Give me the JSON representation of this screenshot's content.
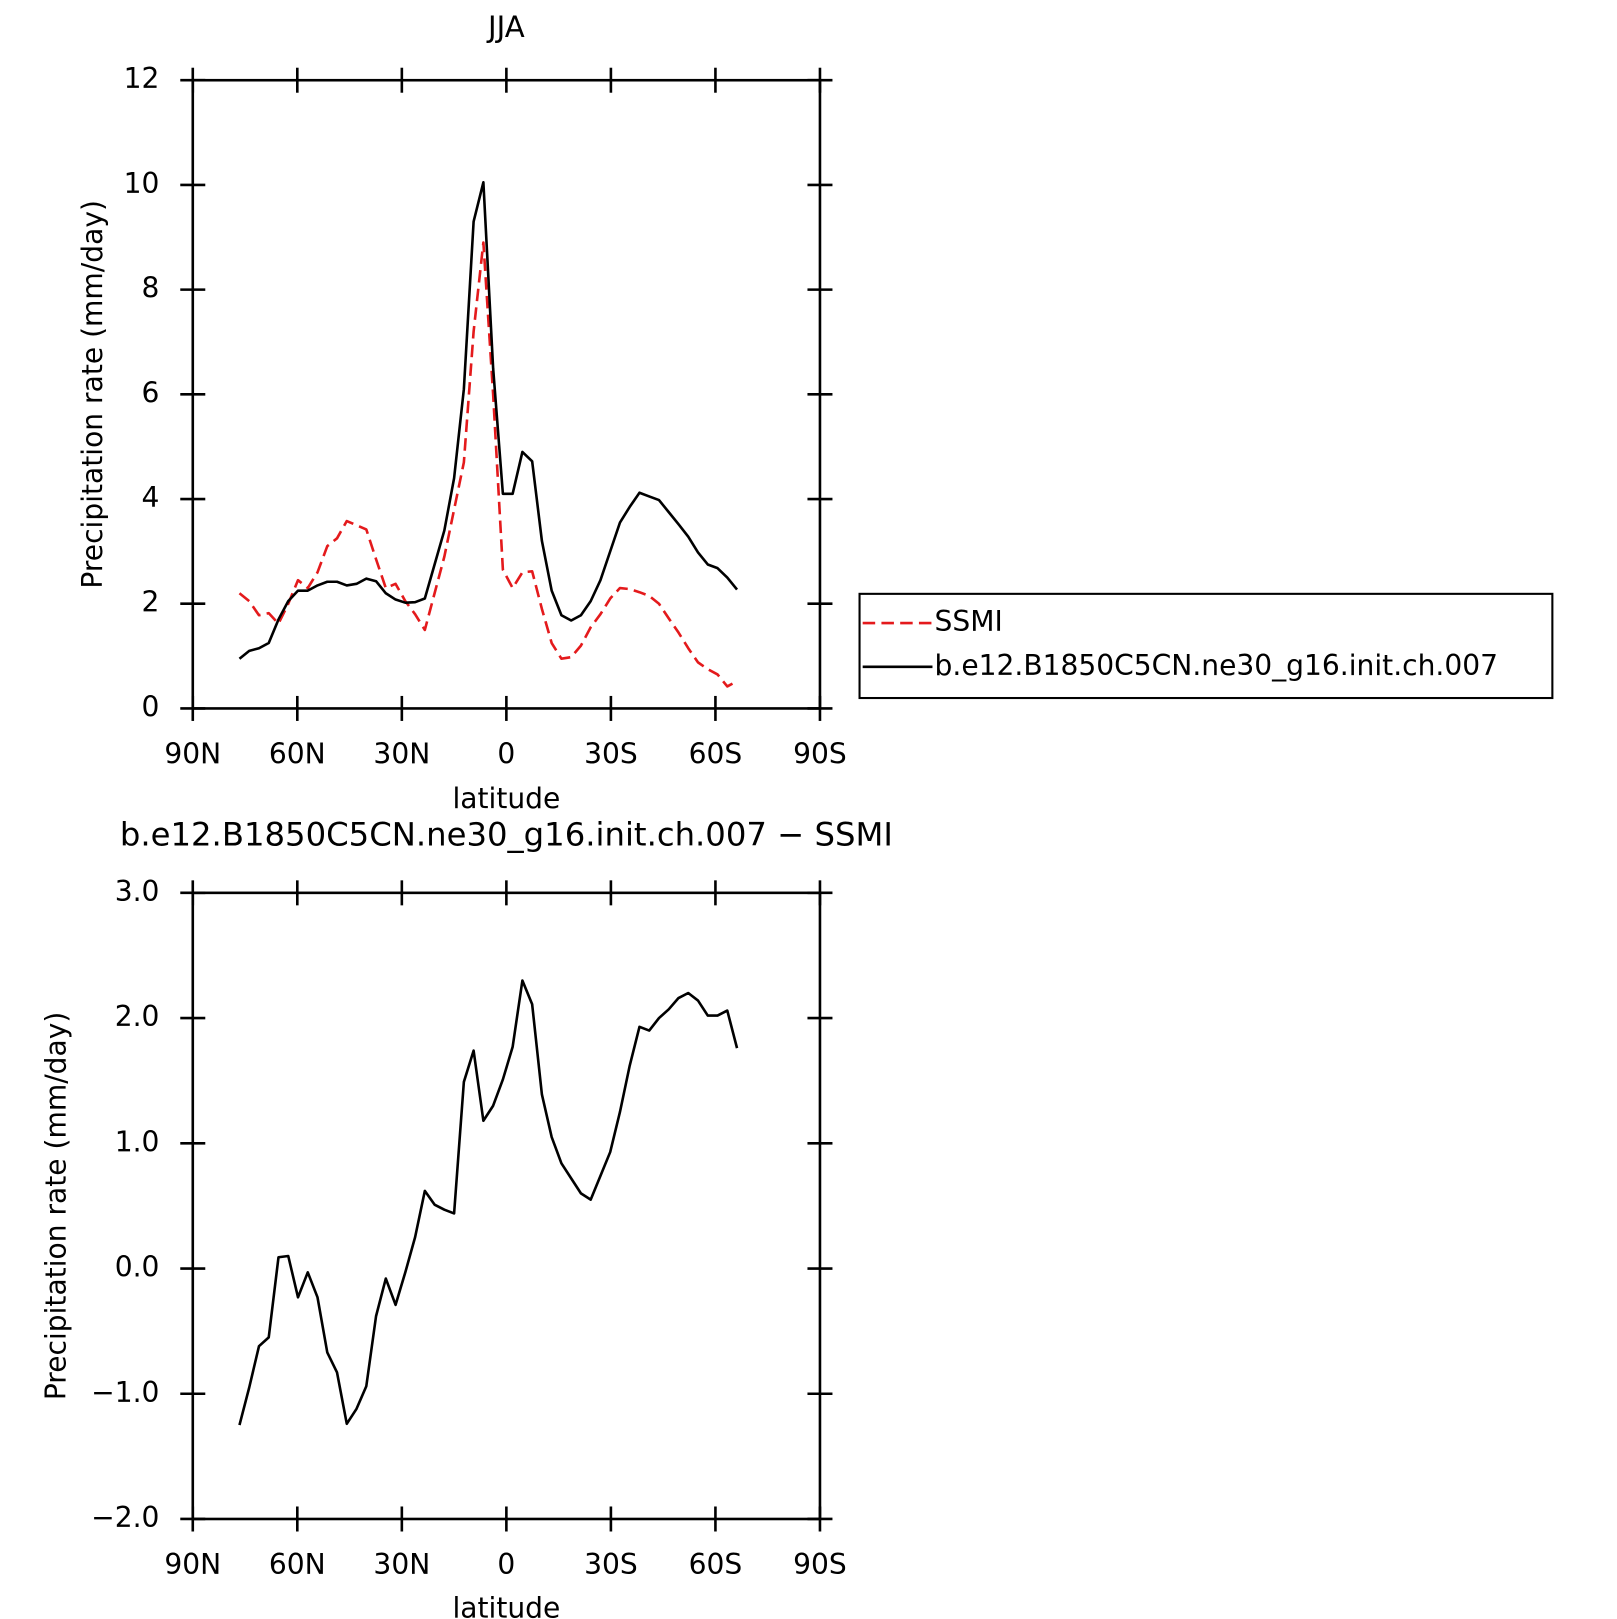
{
  "chart_data": [
    {
      "type": "line",
      "title": "JJA",
      "x_label": "latitude",
      "y_label": "Precipitation rate (mm/day)",
      "x": [
        76.6,
        73.8,
        71,
        68.2,
        65.4,
        62.6,
        59.8,
        57,
        54.2,
        51.4,
        48.6,
        45.8,
        43,
        40.2,
        37.4,
        34.6,
        31.8,
        29,
        26.2,
        23.4,
        20.6,
        17.8,
        15,
        12.2,
        9.4,
        6.6,
        3.8,
        1,
        -1.8,
        -4.6,
        -7.4,
        -10.2,
        -13,
        -15.8,
        -18.6,
        -21.4,
        -24.2,
        -27,
        -29.8,
        -32.6,
        -35.4,
        -38.2,
        -41,
        -43.8,
        -46.6,
        -49.4,
        -52.2,
        -55,
        -57.8,
        -60.6,
        -63.4,
        -66.2
      ],
      "series": [
        {
          "name": "SSMI",
          "color": "#e41a1c",
          "line_style": "dashed",
          "values": [
            2.2,
            2.05,
            1.78,
            1.82,
            1.62,
            2.0,
            2.45,
            2.3,
            2.6,
            3.1,
            3.25,
            3.58,
            3.5,
            3.42,
            2.85,
            2.3,
            2.38,
            2.05,
            1.8,
            1.5,
            2.2,
            2.9,
            3.8,
            4.7,
            7.2,
            8.9,
            6.0,
            2.65,
            2.3,
            2.6,
            2.62,
            1.9,
            1.25,
            0.95,
            0.98,
            1.2,
            1.55,
            1.8,
            2.1,
            2.3,
            2.28,
            2.22,
            2.15,
            2.0,
            1.72,
            1.45,
            1.15,
            0.88,
            0.75,
            0.65,
            0.42,
            0.52
          ]
        },
        {
          "name": "b.e12.B1850C5CN.ne30_g16.init.ch.007",
          "color": "#000000",
          "line_style": "solid",
          "values": [
            0.95,
            1.1,
            1.15,
            1.25,
            1.7,
            2.05,
            2.25,
            2.25,
            2.35,
            2.42,
            2.42,
            2.35,
            2.38,
            2.48,
            2.43,
            2.2,
            2.08,
            2.02,
            2.03,
            2.1,
            2.75,
            3.4,
            4.4,
            6.1,
            9.3,
            10.05,
            6.5,
            4.1,
            4.1,
            4.9,
            4.72,
            3.2,
            2.25,
            1.78,
            1.68,
            1.78,
            2.05,
            2.45,
            3.0,
            3.55,
            3.85,
            4.12,
            4.05,
            3.98,
            3.75,
            3.52,
            3.28,
            2.98,
            2.75,
            2.68,
            2.5,
            2.27
          ]
        }
      ],
      "xlim": [
        90,
        -90
      ],
      "xticks": [
        {
          "value": 90,
          "label": "90N"
        },
        {
          "value": 60,
          "label": "60N"
        },
        {
          "value": 30,
          "label": "30N"
        },
        0,
        {
          "value": -30,
          "label": "30S"
        },
        {
          "value": -60,
          "label": "60S"
        },
        {
          "value": -90,
          "label": "90S"
        }
      ],
      "ylim": [
        0,
        12
      ],
      "yticks": [
        0,
        2,
        4,
        6,
        8,
        10,
        12
      ],
      "legend": "right"
    },
    {
      "type": "line",
      "title": "b.e12.B1850C5CN.ne30_g16.init.ch.007 − SSMI",
      "x_label": "latitude",
      "y_label": "Precipitation rate (mm/day)",
      "x": [
        76.6,
        73.8,
        71,
        68.2,
        65.4,
        62.6,
        59.8,
        57,
        54.2,
        51.4,
        48.6,
        45.8,
        43,
        40.2,
        37.4,
        34.6,
        31.8,
        29,
        26.2,
        23.4,
        20.6,
        17.8,
        15,
        12.2,
        9.4,
        6.6,
        3.8,
        1,
        -1.8,
        -4.6,
        -7.4,
        -10.2,
        -13,
        -15.8,
        -18.6,
        -21.4,
        -24.2,
        -27,
        -29.8,
        -32.6,
        -35.4,
        -38.2,
        -41,
        -43.8,
        -46.6,
        -49.4,
        -52.2,
        -55,
        -57.8,
        -60.6,
        -63.4,
        -66.2
      ],
      "values": [
        -1.25,
        -0.95,
        -0.62,
        -0.55,
        0.09,
        0.1,
        -0.23,
        -0.03,
        -0.23,
        -0.67,
        -0.83,
        -1.24,
        -1.12,
        -0.94,
        -0.38,
        -0.08,
        -0.29,
        -0.03,
        0.25,
        0.62,
        0.51,
        0.47,
        0.44,
        1.49,
        1.74,
        1.18,
        1.3,
        1.51,
        1.77,
        2.3,
        2.11,
        1.39,
        1.05,
        0.84,
        0.72,
        0.6,
        0.55,
        0.74,
        0.93,
        1.25,
        1.62,
        1.93,
        1.9,
        2.0,
        2.07,
        2.16,
        2.2,
        2.14,
        2.02,
        2.02,
        2.06,
        1.76
      ],
      "color": "#000000",
      "xlim": [
        90,
        -90
      ],
      "xticks": [
        {
          "value": 90,
          "label": "90N"
        },
        {
          "value": 60,
          "label": "60N"
        },
        {
          "value": 30,
          "label": "30N"
        },
        0,
        {
          "value": -30,
          "label": "30S"
        },
        {
          "value": -60,
          "label": "60S"
        },
        {
          "value": -90,
          "label": "90S"
        }
      ],
      "ylim": [
        -2,
        3
      ],
      "yticks": [
        {
          "value": -2,
          "label": "−2.0"
        },
        {
          "value": -1,
          "label": "−1.0"
        },
        {
          "value": 0,
          "label": "0.0"
        },
        {
          "value": 1,
          "label": "1.0"
        },
        {
          "value": 2,
          "label": "2.0"
        },
        {
          "value": 3,
          "label": "3.0"
        }
      ]
    }
  ]
}
